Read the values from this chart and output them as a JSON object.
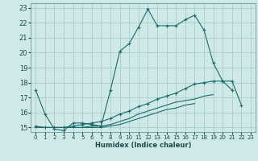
{
  "xlabel": "Humidex (Indice chaleur)",
  "xlim": [
    -0.5,
    23.5
  ],
  "ylim": [
    14.7,
    23.3
  ],
  "yticks": [
    15,
    16,
    17,
    18,
    19,
    20,
    21,
    22,
    23
  ],
  "xticks": [
    0,
    1,
    2,
    3,
    4,
    5,
    6,
    7,
    8,
    9,
    10,
    11,
    12,
    13,
    14,
    15,
    16,
    17,
    18,
    19,
    20,
    21,
    22,
    23
  ],
  "bg_color": "#cfe8e8",
  "grid_color": "#b0d0d0",
  "line_color": "#1a6b6b",
  "line1_y": [
    17.5,
    15.9,
    14.9,
    14.8,
    15.3,
    15.3,
    15.2,
    15.1,
    17.5,
    20.1,
    20.6,
    21.7,
    22.9,
    21.8,
    21.8,
    21.8,
    22.2,
    22.5,
    21.5,
    19.3,
    18.1,
    18.1,
    16.5,
    null
  ],
  "line2_y": [
    15.1,
    15.0,
    15.0,
    15.0,
    15.1,
    15.2,
    15.3,
    15.4,
    15.6,
    15.9,
    16.1,
    16.4,
    16.6,
    16.9,
    17.1,
    17.3,
    17.6,
    17.9,
    18.0,
    18.1,
    18.1,
    17.5,
    null,
    null
  ],
  "line3_y": [
    15.0,
    15.0,
    15.0,
    15.0,
    15.0,
    15.0,
    15.1,
    15.1,
    15.2,
    15.4,
    15.6,
    15.9,
    16.1,
    16.3,
    16.5,
    16.7,
    16.8,
    16.9,
    17.1,
    17.2,
    null,
    null,
    null,
    null
  ],
  "line4_y": [
    15.0,
    15.0,
    15.0,
    15.0,
    15.0,
    15.0,
    15.0,
    15.0,
    15.1,
    15.2,
    15.4,
    15.6,
    15.8,
    16.0,
    16.2,
    16.3,
    16.5,
    16.6,
    null,
    null,
    null,
    null,
    null,
    null
  ]
}
